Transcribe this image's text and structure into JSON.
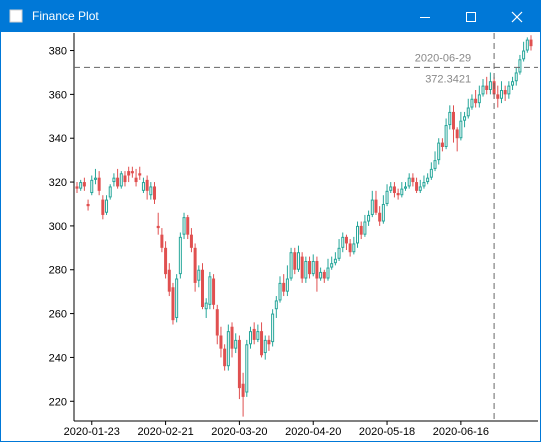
{
  "window": {
    "title": "Finance Plot",
    "app_icon": "plot-app-icon",
    "buttons": [
      "minimize-icon",
      "maximize-icon",
      "close-icon"
    ],
    "colors": {
      "titlebar": "#0078d7",
      "up_candle": "#26a69a",
      "down_candle": "#e05050",
      "crosshair": "#666666"
    }
  },
  "chart_data": {
    "type": "candlestick",
    "y_ticks": [
      220,
      240,
      260,
      280,
      300,
      320,
      340,
      360,
      380
    ],
    "x_ticks": [
      "2020-01-23",
      "2020-02-21",
      "2020-03-20",
      "2020-04-20",
      "2020-05-18",
      "2020-06-16"
    ],
    "ylim": [
      211,
      388
    ],
    "grid": false,
    "crosshair": {
      "x_label": "2020-06-29",
      "y_label": "372.3421",
      "y_value": 372.3421
    },
    "candles": [
      [
        318,
        317,
        320,
        315
      ],
      [
        317,
        320,
        321,
        316
      ],
      [
        320,
        318,
        322,
        316
      ],
      [
        310,
        309,
        312,
        307
      ],
      [
        315,
        321,
        323,
        314
      ],
      [
        321,
        322,
        326,
        319
      ],
      [
        322,
        316,
        325,
        314
      ],
      [
        312,
        305,
        314,
        303
      ],
      [
        306,
        312,
        314,
        305
      ],
      [
        313,
        318,
        319,
        312
      ],
      [
        320,
        322,
        324,
        318
      ],
      [
        322,
        318,
        326,
        317
      ],
      [
        318,
        324,
        325,
        317
      ],
      [
        323,
        320,
        325,
        318
      ],
      [
        325,
        323,
        327,
        320
      ],
      [
        325,
        324,
        327,
        322
      ],
      [
        322,
        320,
        326,
        318
      ],
      [
        324,
        323,
        327,
        321
      ],
      [
        316,
        320,
        322,
        315
      ],
      [
        321,
        316,
        323,
        312
      ],
      [
        314,
        318,
        320,
        312
      ],
      [
        318,
        312,
        320,
        310
      ],
      [
        300,
        299,
        306,
        296
      ],
      [
        296,
        290,
        299,
        288
      ],
      [
        290,
        278,
        293,
        276
      ],
      [
        280,
        270,
        283,
        268
      ],
      [
        272,
        257,
        274,
        255
      ],
      [
        258,
        276,
        278,
        256
      ],
      [
        278,
        295,
        297,
        276
      ],
      [
        296,
        304,
        306,
        294
      ],
      [
        304,
        296,
        305,
        294
      ],
      [
        296,
        290,
        299,
        288
      ],
      [
        290,
        274,
        292,
        270
      ],
      [
        275,
        280,
        282,
        272
      ],
      [
        280,
        263,
        283,
        262
      ],
      [
        262,
        265,
        267,
        258
      ],
      [
        264,
        277,
        279,
        262
      ],
      [
        276,
        264,
        278,
        262
      ],
      [
        262,
        250,
        264,
        246
      ],
      [
        250,
        244,
        254,
        240
      ],
      [
        244,
        236,
        246,
        234
      ],
      [
        236,
        252,
        255,
        234
      ],
      [
        254,
        244,
        256,
        240
      ],
      [
        244,
        248,
        251,
        242
      ],
      [
        248,
        226,
        250,
        221
      ],
      [
        228,
        222,
        233,
        213
      ],
      [
        224,
        246,
        248,
        222
      ],
      [
        246,
        252,
        254,
        244
      ],
      [
        253,
        248,
        256,
        246
      ],
      [
        248,
        252,
        255,
        247
      ],
      [
        252,
        241,
        256,
        240
      ],
      [
        242,
        248,
        250,
        239
      ],
      [
        248,
        246,
        250,
        243
      ],
      [
        247,
        260,
        262,
        245
      ],
      [
        262,
        266,
        268,
        258
      ],
      [
        266,
        274,
        277,
        265
      ],
      [
        274,
        270,
        278,
        268
      ],
      [
        270,
        276,
        282,
        268
      ],
      [
        276,
        288,
        290,
        275
      ],
      [
        288,
        280,
        290,
        278
      ],
      [
        280,
        288,
        291,
        279
      ],
      [
        286,
        276,
        288,
        274
      ],
      [
        276,
        284,
        286,
        274
      ],
      [
        284,
        278,
        286,
        276
      ],
      [
        278,
        284,
        287,
        277
      ],
      [
        284,
        276,
        286,
        270
      ],
      [
        276,
        279,
        281,
        275
      ],
      [
        279,
        276,
        280,
        274
      ],
      [
        276,
        281,
        285,
        275
      ],
      [
        281,
        283,
        286,
        280
      ],
      [
        283,
        285,
        288,
        282
      ],
      [
        285,
        290,
        294,
        284
      ],
      [
        290,
        295,
        297,
        288
      ],
      [
        295,
        292,
        296,
        289
      ],
      [
        292,
        288,
        294,
        286
      ],
      [
        288,
        292,
        295,
        287
      ],
      [
        292,
        300,
        302,
        290
      ],
      [
        300,
        296,
        302,
        294
      ],
      [
        296,
        302,
        305,
        295
      ],
      [
        302,
        305,
        307,
        300
      ],
      [
        305,
        312,
        316,
        304
      ],
      [
        312,
        306,
        316,
        305
      ],
      [
        306,
        302,
        309,
        300
      ],
      [
        302,
        310,
        314,
        301
      ],
      [
        310,
        316,
        319,
        309
      ],
      [
        316,
        318,
        320,
        315
      ],
      [
        318,
        315,
        320,
        313
      ],
      [
        315,
        314,
        317,
        312
      ],
      [
        314,
        317,
        320,
        313
      ],
      [
        317,
        318,
        320,
        316
      ],
      [
        318,
        322,
        324,
        317
      ],
      [
        322,
        320,
        324,
        318
      ],
      [
        320,
        316,
        322,
        315
      ],
      [
        316,
        318,
        321,
        315
      ],
      [
        318,
        320,
        323,
        317
      ],
      [
        320,
        322,
        324,
        319
      ],
      [
        322,
        326,
        329,
        321
      ],
      [
        326,
        330,
        334,
        325
      ],
      [
        330,
        338,
        340,
        328
      ],
      [
        338,
        336,
        340,
        334
      ],
      [
        336,
        346,
        349,
        335
      ],
      [
        346,
        352,
        355,
        344
      ],
      [
        352,
        344,
        355,
        338
      ],
      [
        344,
        340,
        345,
        334
      ],
      [
        340,
        348,
        352,
        339
      ],
      [
        348,
        350,
        352,
        345
      ],
      [
        350,
        354,
        358,
        349
      ],
      [
        354,
        358,
        360,
        353
      ],
      [
        358,
        356,
        362,
        354
      ],
      [
        356,
        360,
        364,
        354
      ],
      [
        360,
        364,
        367,
        359
      ],
      [
        364,
        362,
        368,
        360
      ],
      [
        362,
        366,
        370,
        360
      ],
      [
        366,
        360,
        368,
        358
      ],
      [
        360,
        358,
        364,
        354
      ],
      [
        358,
        362,
        366,
        356
      ],
      [
        362,
        360,
        364,
        357
      ],
      [
        360,
        364,
        366,
        358
      ],
      [
        364,
        366,
        368,
        362
      ],
      [
        366,
        370,
        372,
        364
      ],
      [
        370,
        376,
        378,
        369
      ],
      [
        376,
        380,
        384,
        375
      ],
      [
        380,
        385,
        386,
        379
      ],
      [
        385,
        382,
        387,
        380
      ]
    ]
  }
}
